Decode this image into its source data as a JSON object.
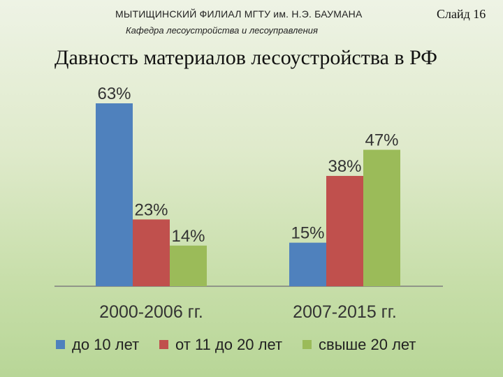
{
  "header": {
    "org": "МЫТИЩИНСКИЙ ФИЛИАЛ МГТУ им. Н.Э. БАУМАНА",
    "dept": "Кафедра лесоустройства и лесоуправления",
    "slide": "Слайд 16"
  },
  "title": "Давность материалов лесоустройства в РФ",
  "chart_data": {
    "type": "bar",
    "categories": [
      "2000-2006 гг.",
      "2007-2015 гг."
    ],
    "series": [
      {
        "name": "до 10 лет",
        "color": "#4f81bd",
        "values": [
          63,
          15
        ],
        "labels": [
          "63%",
          "15%"
        ]
      },
      {
        "name": "от 11 до 20 лет",
        "color": "#c0504d",
        "values": [
          23,
          38
        ],
        "labels": [
          "23%",
          "38%"
        ]
      },
      {
        "name": "свыше 20 лет",
        "color": "#9bbb59",
        "values": [
          14,
          47
        ],
        "labels": [
          "14%",
          "47%"
        ]
      }
    ],
    "unit": "%",
    "ylim": [
      0,
      63
    ],
    "grid": false,
    "legend": "bottom"
  }
}
